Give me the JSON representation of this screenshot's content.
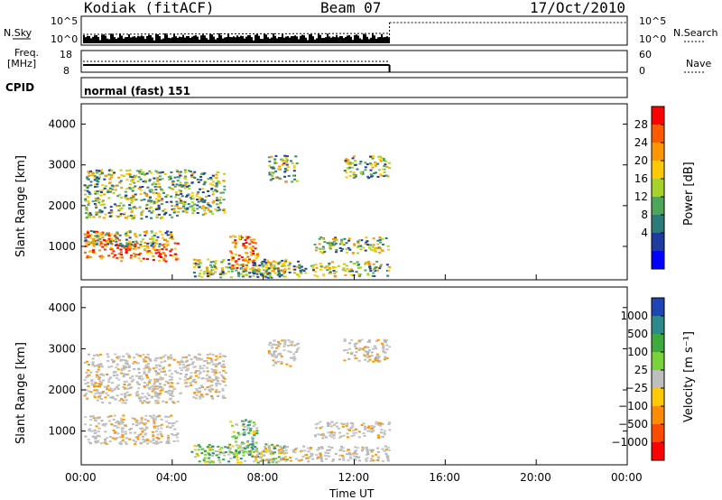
{
  "header": {
    "station": "Kodiak (fitACF)",
    "beam": "Beam 07",
    "date": "17/Oct/2010"
  },
  "top_panels": {
    "nsky_label": "N.Sky",
    "nsky_ticks": [
      "10^5",
      "10^0"
    ],
    "nsearch_label": "N.Search",
    "nsearch_ticks": [
      "10^5",
      "10^0"
    ],
    "freq_label_line1": "Freq.",
    "freq_label_line2": "[MHz]",
    "freq_ticks": [
      "18",
      "8"
    ],
    "nave_label": "Nave",
    "nave_ticks": [
      "60",
      "0"
    ],
    "cpid_label": "CPID",
    "cpid_value": "normal (fast) 151"
  },
  "chart_data": [
    {
      "type": "heatmap",
      "name": "power",
      "ylabel": "Slant Range [km]",
      "yticks": [
        "4000",
        "3000",
        "2000",
        "1000"
      ],
      "ylim": [
        180,
        4500
      ],
      "xlim_hours": [
        0,
        24
      ],
      "data_end_hour": 13.55,
      "colorbar": {
        "label": "Power [dB]",
        "ticks": [
          "28",
          "24",
          "20",
          "16",
          "12",
          "8",
          "4"
        ],
        "colors": [
          "#ff0000",
          "#ff5a00",
          "#ff9600",
          "#ffc800",
          "#a6d22a",
          "#4ea65a",
          "#2c7a7a",
          "#1e3ca0",
          "#0000ff"
        ]
      },
      "echo_regions": [
        {
          "x": [
            0.1,
            1.7
          ],
          "y": [
            700,
            1400
          ],
          "level": "high"
        },
        {
          "x": [
            1.7,
            4.2
          ],
          "y": [
            650,
            1100
          ],
          "level": "high"
        },
        {
          "x": [
            0.1,
            4.0
          ],
          "y": [
            1000,
            1400
          ],
          "level": "mid"
        },
        {
          "x": [
            0.1,
            4.2
          ],
          "y": [
            1700,
            2900
          ],
          "level": "mid"
        },
        {
          "x": [
            4.2,
            6.3
          ],
          "y": [
            1800,
            2900
          ],
          "level": "mid"
        },
        {
          "x": [
            4.8,
            9.0
          ],
          "y": [
            250,
            700
          ],
          "level": "mid"
        },
        {
          "x": [
            6.5,
            7.7
          ],
          "y": [
            400,
            1300
          ],
          "level": "high"
        },
        {
          "x": [
            7.5,
            13.5
          ],
          "y": [
            280,
            650
          ],
          "level": "mid"
        },
        {
          "x": [
            8.2,
            9.5
          ],
          "y": [
            2600,
            3250
          ],
          "level": "mid"
        },
        {
          "x": [
            10.2,
            13.5
          ],
          "y": [
            850,
            1250
          ],
          "level": "mid"
        },
        {
          "x": [
            11.5,
            13.5
          ],
          "y": [
            2700,
            3250
          ],
          "level": "mid"
        }
      ]
    },
    {
      "type": "heatmap",
      "name": "velocity",
      "ylabel": "Slant Range [km]",
      "yticks": [
        "4000",
        "3000",
        "2000",
        "1000"
      ],
      "ylim": [
        180,
        4500
      ],
      "xlim_hours": [
        0,
        24
      ],
      "data_end_hour": 13.55,
      "colorbar": {
        "label": "Velocity [m s⁻¹]",
        "ticks": [
          "1000",
          "500",
          "100",
          "25",
          "−25",
          "−100",
          "−500",
          "−1000"
        ],
        "colors": [
          "#1e46b4",
          "#2e8a8a",
          "#3caa3c",
          "#78d23c",
          "#bebebe",
          "#ffc800",
          "#ff8c00",
          "#ff4b00",
          "#ff0000"
        ]
      },
      "echo_regions": [
        {
          "x": [
            0.1,
            4.2
          ],
          "y": [
            700,
            1400
          ],
          "level": "gray"
        },
        {
          "x": [
            0.1,
            4.2
          ],
          "y": [
            1700,
            2900
          ],
          "level": "gray"
        },
        {
          "x": [
            4.2,
            6.3
          ],
          "y": [
            1800,
            2900
          ],
          "level": "gray"
        },
        {
          "x": [
            4.8,
            9.0
          ],
          "y": [
            250,
            700
          ],
          "level": "green"
        },
        {
          "x": [
            6.5,
            7.7
          ],
          "y": [
            400,
            1300
          ],
          "level": "green"
        },
        {
          "x": [
            7.5,
            13.5
          ],
          "y": [
            280,
            650
          ],
          "level": "gray"
        },
        {
          "x": [
            8.2,
            9.5
          ],
          "y": [
            2600,
            3250
          ],
          "level": "gray"
        },
        {
          "x": [
            10.2,
            13.5
          ],
          "y": [
            850,
            1250
          ],
          "level": "gray"
        },
        {
          "x": [
            11.5,
            13.5
          ],
          "y": [
            2700,
            3250
          ],
          "level": "gray"
        }
      ]
    }
  ],
  "xaxis": {
    "ticks": [
      "00:00",
      "04:00",
      "08:00",
      "12:00",
      "16:00",
      "20:00",
      "00:00"
    ],
    "label": "Time UT"
  }
}
